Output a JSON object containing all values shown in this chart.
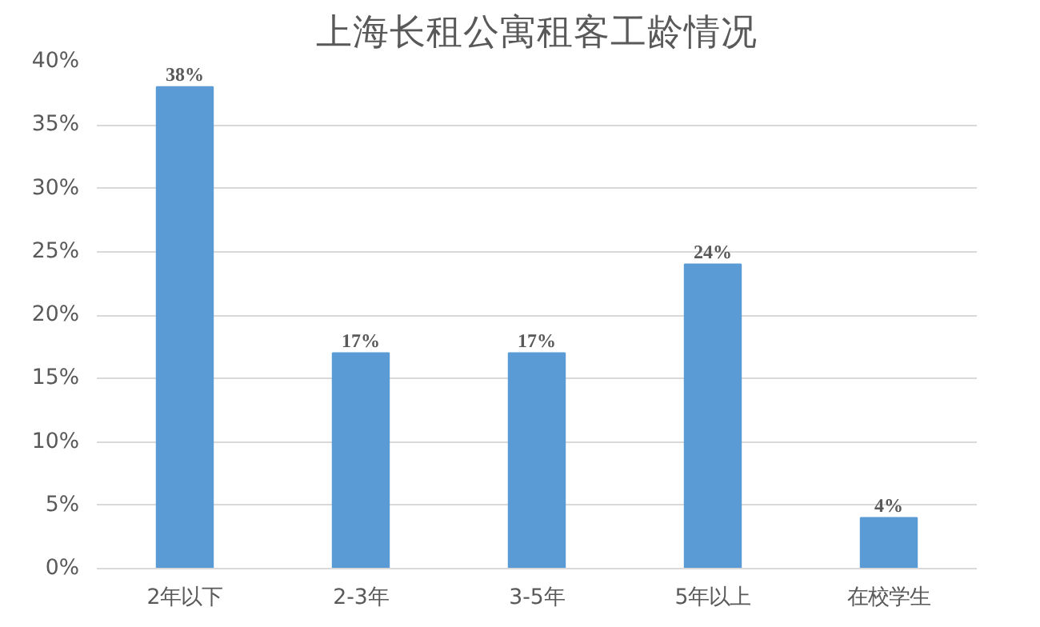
{
  "chart_data": {
    "type": "bar",
    "title": "上海长租公寓租客工龄情况",
    "categories": [
      "2年以下",
      "2-3年",
      "3-5年",
      "5年以上",
      "在校学生"
    ],
    "values": [
      38,
      17,
      17,
      24,
      4
    ],
    "value_labels": [
      "38%",
      "17%",
      "17%",
      "24%",
      "4%"
    ],
    "color": "#5b9bd5",
    "ylim": [
      0,
      40
    ],
    "yticks": [
      {
        "value": 0,
        "label": "0%"
      },
      {
        "value": 5,
        "label": "5%"
      },
      {
        "value": 10,
        "label": "10%"
      },
      {
        "value": 15,
        "label": "15%"
      },
      {
        "value": 20,
        "label": "20%"
      },
      {
        "value": 25,
        "label": "25%"
      },
      {
        "value": 30,
        "label": "30%"
      },
      {
        "value": 35,
        "label": "35%"
      },
      {
        "value": 40,
        "label": "40%"
      }
    ],
    "grid": "y"
  }
}
